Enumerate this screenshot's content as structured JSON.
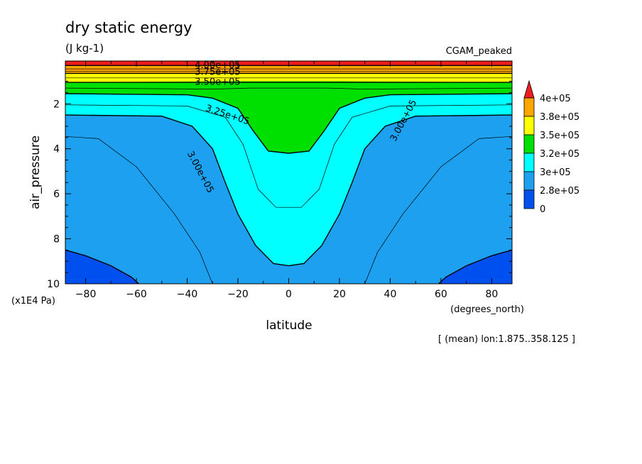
{
  "figure": {
    "title": "dry static energy",
    "units": "(J kg-1)",
    "dataset": "CGAM_peaked",
    "footnote": "[ (mean) lon:1.875..358.125 ]"
  },
  "chart_data": {
    "type": "heatmap",
    "subtype": "filled-contour",
    "title": "dry static energy",
    "xlabel": "latitude",
    "xunits": "(degrees_north)",
    "ylabel": "air_pressure",
    "yunits": "(x1E4 Pa)",
    "xlim": [
      -88,
      88
    ],
    "ylim": [
      10,
      0.1
    ],
    "y_inverted": true,
    "xticks": [
      -80,
      -60,
      -40,
      -20,
      0,
      20,
      40,
      60,
      80
    ],
    "xtick_labels": [
      "−80",
      "−60",
      "−40",
      "−20",
      "0",
      "20",
      "40",
      "60",
      "80"
    ],
    "yticks": [
      2,
      4,
      6,
      8,
      10
    ],
    "ytick_labels": [
      "2",
      "4",
      "6",
      "8",
      "10"
    ],
    "legend_position": "right",
    "colorbar": {
      "labels": [
        "4e+05",
        "3.8e+05",
        "3.5e+05",
        "3.2e+05",
        "3e+05",
        "2.8e+05",
        "0"
      ],
      "colors": [
        "#ee1c1c",
        "#ffa500",
        "#ffff00",
        "#00e000",
        "#00ffff",
        "#1ea0f0",
        "#0050f0"
      ]
    },
    "contour_labels": [
      "4.00e+05",
      "3.75e+05",
      "3.50e+05",
      "3.25e+05",
      "3.00e+05",
      "3.00e+05"
    ],
    "fields": [
      {
        "value": 400000,
        "color": "#ee1c1c",
        "extent": "top"
      },
      {
        "value": 375000,
        "color": "#ffa500",
        "pressure_band": [
          0.3,
          0.7
        ]
      },
      {
        "value": 350000,
        "color": "#ffff00",
        "pressure_band": [
          0.5,
          1.1
        ]
      },
      {
        "value": 325000,
        "color": "#00e000",
        "tropical_bottom": 4.2
      },
      {
        "value": 300000,
        "color": "#00ffff",
        "tropical_bottom": 9.2
      },
      {
        "value": 280000,
        "color": "#1ea0f0",
        "extent": "mid-latitudes"
      },
      {
        "value": 0,
        "color": "#0050f0",
        "extent": "polar surface"
      }
    ]
  }
}
